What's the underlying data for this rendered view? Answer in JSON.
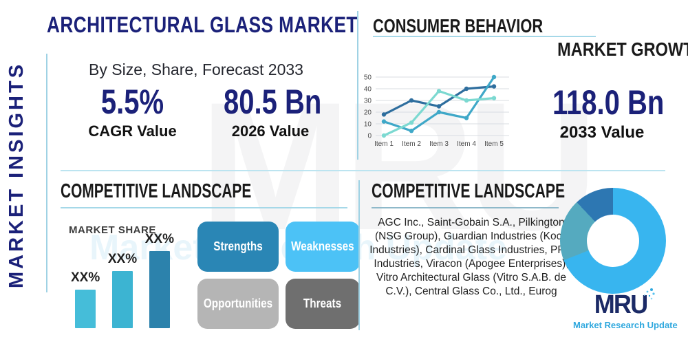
{
  "left_rail": {
    "vertical_label": "MARKET INSIGHTS"
  },
  "header": {
    "title": "ARCHITECTURAL GLASS MARKET",
    "subtitle": "By Size, Share, Forecast 2033"
  },
  "stats": {
    "cagr": {
      "value": "5.5%",
      "label": "CAGR Value"
    },
    "base": {
      "value": "80.5 Bn",
      "label": "2026 Value"
    },
    "forecast": {
      "value": "118.0 Bn",
      "label": "2033 Value"
    }
  },
  "sections": {
    "consumer_behavior": {
      "title": "CONSUMER BEHAVIOR"
    },
    "market_growth": {
      "title": "MARKET GROWTH"
    },
    "competitive_landscape_left": {
      "title": "COMPETITIVE LANDSCAPE"
    },
    "competitive_landscape_right": {
      "title": "COMPETITIVE LANDSCAPE",
      "companies": "AGC Inc., Saint-Gobain S.A., Pilkington (NSG Group), Guardian Industries (Koch Industries), Cardinal Glass Industries, PPG Industries, Viracon (Apogee Enterprises), Vitro Architectural Glass (Vitro S.A.B. de C.V.), Central Glass Co., Ltd., Eurog"
    }
  },
  "swot": {
    "items": [
      {
        "label": "Strengths",
        "color": "#2a86b5"
      },
      {
        "label": "Weaknesses",
        "color": "#4cc2f6"
      },
      {
        "label": "Opportunities",
        "color": "#b5b5b5"
      },
      {
        "label": "Threats",
        "color": "#6f6f6f"
      }
    ]
  },
  "chart_data": [
    {
      "id": "consumer-behavior-line",
      "type": "line",
      "x": [
        "Item 1",
        "Item 2",
        "Item 3",
        "Item 4",
        "Item 5"
      ],
      "series": [
        {
          "name": "dark-blue-series",
          "color": "#2e6e9e",
          "values": [
            18,
            30,
            25,
            40,
            42
          ]
        },
        {
          "name": "medium-blue-series",
          "color": "#3fa8c8",
          "values": [
            12,
            4,
            20,
            15,
            50
          ]
        },
        {
          "name": "light-teal-series",
          "color": "#7cd9d1",
          "values": [
            0,
            11,
            38,
            30,
            32
          ]
        }
      ],
      "ylim": [
        0,
        50
      ],
      "yticks": [
        0,
        10,
        20,
        30,
        40,
        50
      ],
      "grid": true,
      "legend": "none"
    },
    {
      "id": "market-share-bar",
      "type": "bar",
      "title": "MARKET SHARE",
      "labels": [
        "XX%",
        "XX%",
        "XX%"
      ],
      "values": [
        25,
        37,
        50
      ],
      "colors": [
        "#45bdd9",
        "#3cb4d2",
        "#2c82ac"
      ],
      "ylim": [
        0,
        50
      ]
    },
    {
      "id": "competitor-share-donut",
      "type": "pie",
      "slices": [
        {
          "label": "light-blue-segment",
          "value": 69,
          "color": "#38b5ef"
        },
        {
          "label": "teal-segment",
          "value": 19,
          "color": "#55aabf"
        },
        {
          "label": "dark-blue-segment",
          "value": 12,
          "color": "#2d77b2"
        }
      ]
    }
  ],
  "brand": {
    "logo_text": "MRU",
    "logo_subtext": "Market Research Update"
  },
  "watermark": {
    "text": "MRU",
    "subtext": "Market Research Update"
  },
  "colors": {
    "navy": "#1b2179",
    "accent_line": "#9fd2e4",
    "divider": "#bce4f0",
    "underline_light": "#a5d8e8",
    "underline_gray_blue": "#8fb9ca",
    "logo_navy": "#1b2a66",
    "logo_blue": "#2fa8de"
  }
}
